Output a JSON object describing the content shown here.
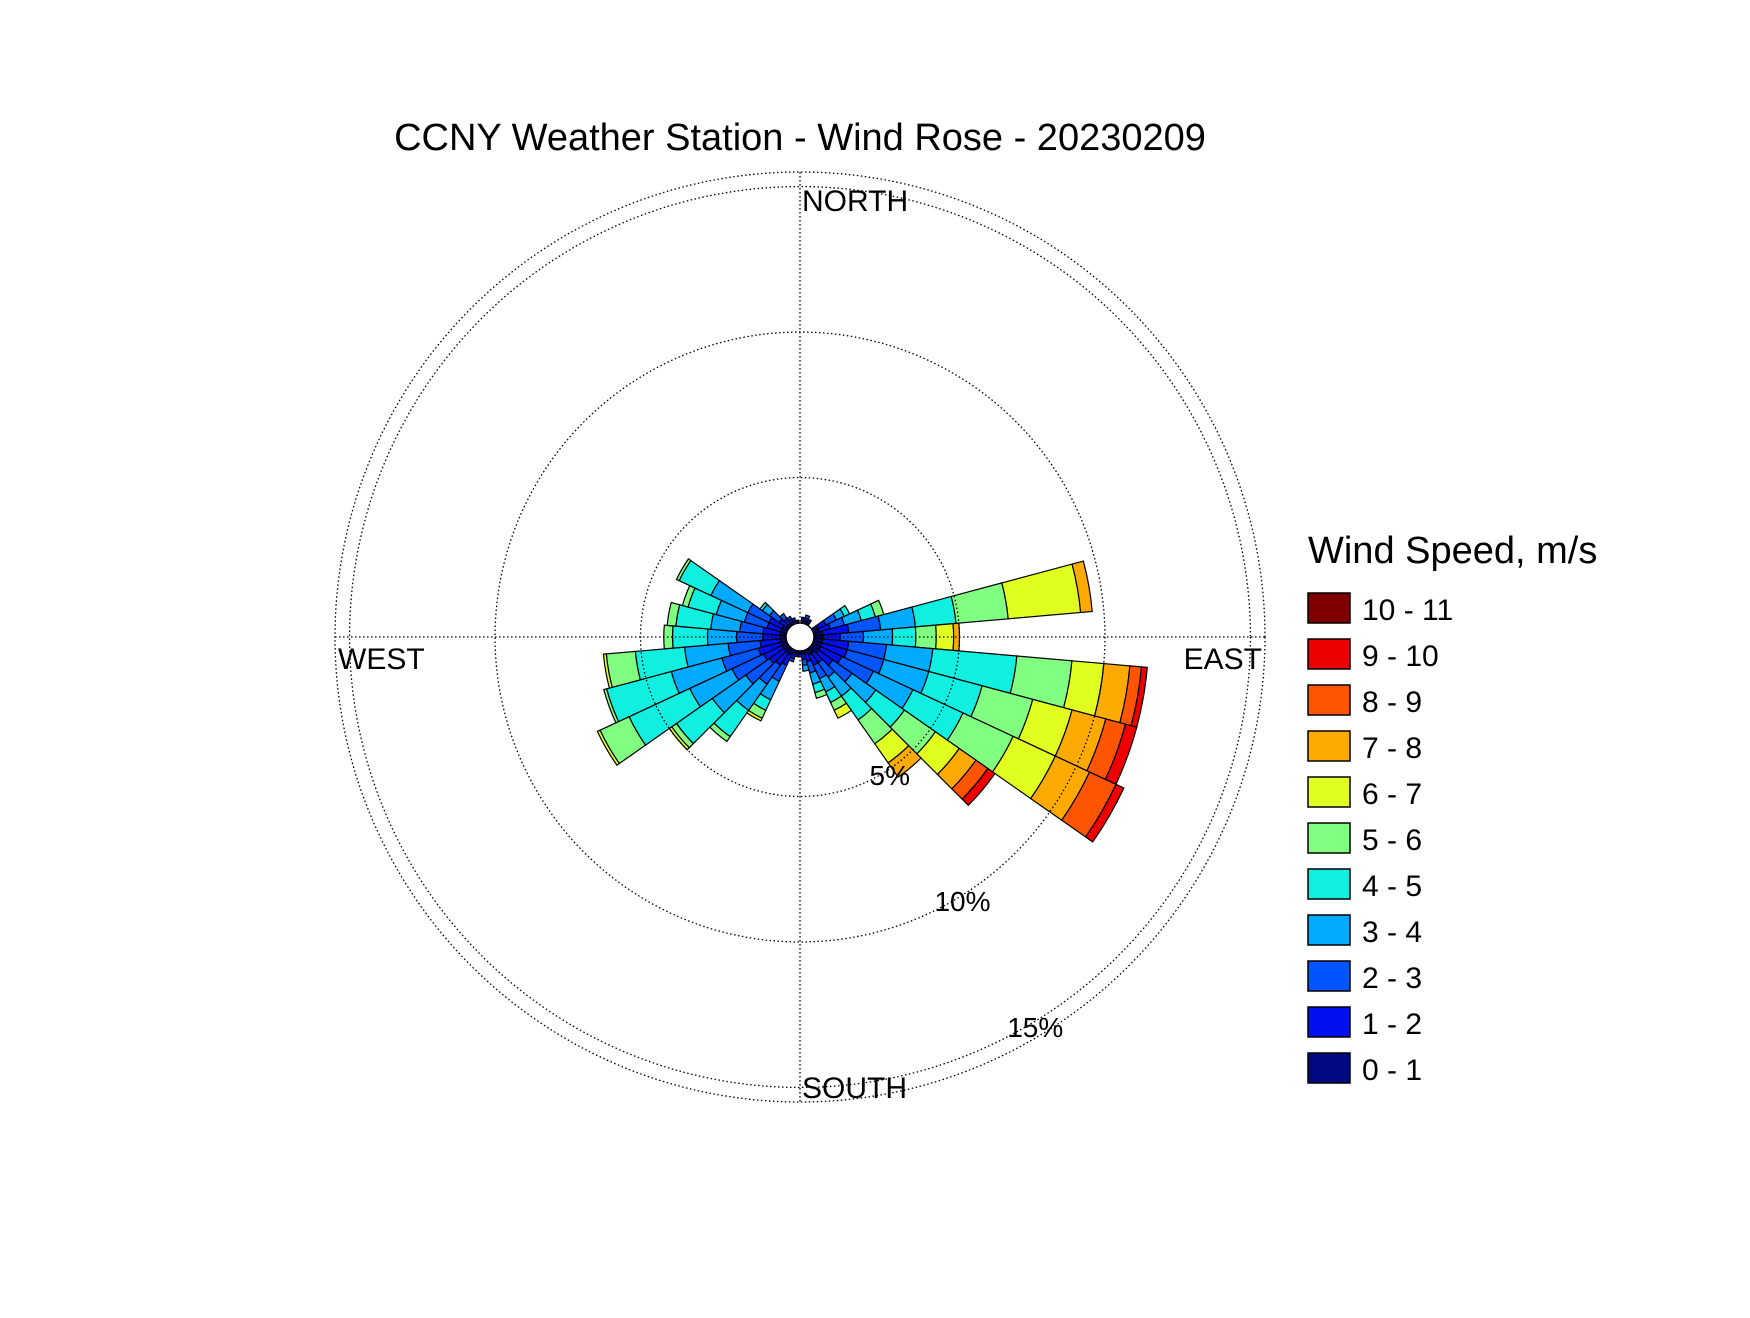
{
  "chart_data": {
    "type": "wind-rose",
    "title": "CCNY Weather Station - Wind Rose - 20230209",
    "directions": [
      "NORTH",
      "EAST",
      "SOUTH",
      "WEST"
    ],
    "ring_labels": [
      "5%",
      "10%",
      "15%"
    ],
    "rings": [
      5,
      10,
      15
    ],
    "max_radius_percent": 15.5,
    "legend_title": "Wind Speed, m/s",
    "speed_bins": [
      {
        "label": "0 - 1",
        "color": "#000a80"
      },
      {
        "label": "1 - 2",
        "color": "#0010f0"
      },
      {
        "label": "2 - 3",
        "color": "#0055ff"
      },
      {
        "label": "3 - 4",
        "color": "#00aaff"
      },
      {
        "label": "4 - 5",
        "color": "#11f0e0"
      },
      {
        "label": "5 - 6",
        "color": "#80ff80"
      },
      {
        "label": "6 - 7",
        "color": "#e0ff20"
      },
      {
        "label": "7 - 8",
        "color": "#ffaa00"
      },
      {
        "label": "8 - 9",
        "color": "#ff5500"
      },
      {
        "label": "9 - 10",
        "color": "#ee0000"
      },
      {
        "label": "10 - 11",
        "color": "#800000"
      }
    ],
    "sector_width_deg": 10,
    "sectors": [
      {
        "dir": 10,
        "values": [
          0.1,
          0.1
        ]
      },
      {
        "dir": 20,
        "values": [
          0.1,
          0.1,
          0.1
        ]
      },
      {
        "dir": 30,
        "values": [
          0.1,
          0.1
        ]
      },
      {
        "dir": 60,
        "values": [
          0.2,
          0.3,
          0.4,
          0.3,
          0.2
        ]
      },
      {
        "dir": 70,
        "values": [
          0.2,
          0.4,
          0.5,
          0.6,
          0.5,
          0.3
        ]
      },
      {
        "dir": 80,
        "values": [
          0.3,
          0.9,
          1.1,
          1.2,
          1.4,
          1.8,
          2.5,
          0.4
        ]
      },
      {
        "dir": 90,
        "values": [
          0.3,
          0.6,
          0.8,
          1.0,
          0.8,
          0.7,
          0.6,
          0.2
        ]
      },
      {
        "dir": 100,
        "values": [
          0.3,
          0.9,
          1.3,
          1.6,
          2.9,
          1.9,
          1.1,
          0.9,
          0.4,
          0.2
        ]
      },
      {
        "dir": 110,
        "values": [
          0.3,
          0.9,
          1.3,
          1.6,
          1.9,
          1.8,
          1.4,
          1.2,
          0.7,
          0.4
        ]
      },
      {
        "dir": 120,
        "values": [
          0.3,
          0.8,
          1.2,
          1.5,
          1.9,
          1.9,
          1.6,
          1.3,
          1.0,
          0.3
        ]
      },
      {
        "dir": 130,
        "values": [
          0.3,
          0.6,
          0.8,
          1.0,
          1.2,
          1.3,
          1.0,
          0.7,
          0.5,
          0.3
        ]
      },
      {
        "dir": 140,
        "values": [
          0.2,
          0.4,
          0.6,
          0.8,
          1.0,
          1.0,
          0.8,
          0.6
        ]
      },
      {
        "dir": 150,
        "values": [
          0.2,
          0.4,
          0.5,
          0.5,
          0.4,
          0.3,
          0.3
        ]
      },
      {
        "dir": 160,
        "values": [
          0.1,
          0.3,
          0.4,
          0.4,
          0.3,
          0.2
        ]
      },
      {
        "dir": 170,
        "values": [
          0.1,
          0.2,
          0.2,
          0.2
        ]
      },
      {
        "dir": 180,
        "values": [
          0.1,
          0.1
        ]
      },
      {
        "dir": 190,
        "values": [
          0.1,
          0.1
        ]
      },
      {
        "dir": 200,
        "values": [
          0.1,
          0.2,
          0.1
        ]
      },
      {
        "dir": 210,
        "values": [
          0.2,
          0.4,
          0.6,
          0.7,
          0.4,
          0.3,
          0.1
        ]
      },
      {
        "dir": 220,
        "values": [
          0.2,
          0.5,
          0.8,
          1.1,
          1.1,
          0.2
        ]
      },
      {
        "dir": 230,
        "values": [
          0.2,
          0.6,
          1.0,
          1.4,
          1.5,
          0.2,
          0.1
        ]
      },
      {
        "dir": 240,
        "values": [
          0.2,
          0.7,
          1.2,
          1.6,
          2.3,
          1.1,
          0.1
        ]
      },
      {
        "dir": 250,
        "values": [
          0.2,
          0.8,
          1.3,
          1.8,
          2.3,
          0.1
        ]
      },
      {
        "dir": 260,
        "values": [
          0.2,
          0.7,
          1.1,
          1.5,
          1.7,
          1.0,
          0.1
        ]
      },
      {
        "dir": 270,
        "values": [
          0.2,
          0.6,
          0.9,
          1.0,
          1.2,
          0.3
        ]
      },
      {
        "dir": 280,
        "values": [
          0.2,
          0.6,
          0.8,
          1.0,
          1.2,
          0.3
        ]
      },
      {
        "dir": 290,
        "values": [
          0.2,
          0.5,
          0.8,
          1.0,
          1.0,
          0.2
        ]
      },
      {
        "dir": 300,
        "values": [
          0.2,
          0.5,
          0.8,
          1.4,
          1.2,
          0.1
        ]
      },
      {
        "dir": 310,
        "values": [
          0.1,
          0.3,
          0.4,
          0.3,
          0.1
        ]
      },
      {
        "dir": 320,
        "values": [
          0.1,
          0.2,
          0.2
        ]
      },
      {
        "dir": 330,
        "values": [
          0.1,
          0.1,
          0.1
        ]
      },
      {
        "dir": 340,
        "values": [
          0.1,
          0.1
        ]
      },
      {
        "dir": 350,
        "values": [
          0.1
        ]
      }
    ]
  }
}
